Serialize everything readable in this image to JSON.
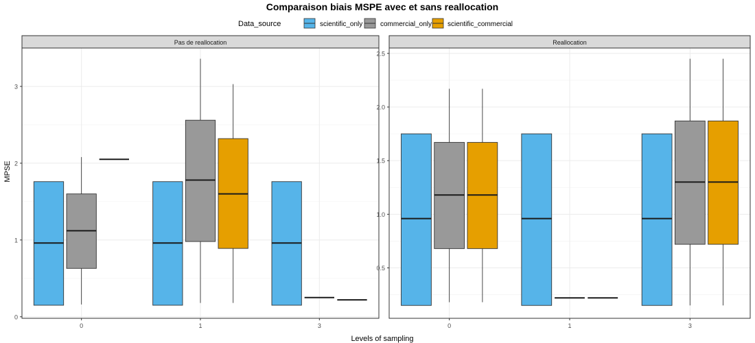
{
  "chart_data": {
    "type": "boxplot",
    "title": "Comparaison biais MSPE avec et sans reallocation",
    "xlabel": "Levels of sampling",
    "ylabel": "MPSE",
    "legend": {
      "title": "Data_source",
      "position": "top",
      "entries": [
        {
          "name": "scientific_only",
          "color": "#56B4E9"
        },
        {
          "name": "commercial_only",
          "color": "#999999"
        },
        {
          "name": "scientific_commercial",
          "color": "#E69F00"
        }
      ]
    },
    "categories": [
      "0",
      "1",
      "3"
    ],
    "grid": true,
    "panels": [
      {
        "strip": "Pas de reallocation",
        "ylim": [
          -0.02,
          3.5
        ],
        "yticks": [
          0,
          1,
          2,
          3
        ],
        "yticklabels": [
          "0",
          "1",
          "2",
          "3"
        ],
        "boxes": [
          {
            "category": "0",
            "series": "scientific_only",
            "min": 0.15,
            "q1": 0.15,
            "median": 0.96,
            "q3": 1.76,
            "max": 1.76
          },
          {
            "category": "0",
            "series": "commercial_only",
            "min": 0.16,
            "q1": 0.63,
            "median": 1.12,
            "q3": 1.6,
            "max": 2.08
          },
          {
            "category": "0",
            "series": "scientific_commercial",
            "min": 2.05,
            "q1": 2.05,
            "median": 2.05,
            "q3": 2.05,
            "max": 2.05
          },
          {
            "category": "1",
            "series": "scientific_only",
            "min": 0.15,
            "q1": 0.15,
            "median": 0.96,
            "q3": 1.76,
            "max": 1.76
          },
          {
            "category": "1",
            "series": "commercial_only",
            "min": 0.18,
            "q1": 0.98,
            "median": 1.78,
            "q3": 2.56,
            "max": 3.36
          },
          {
            "category": "1",
            "series": "scientific_commercial",
            "min": 0.18,
            "q1": 0.89,
            "median": 1.6,
            "q3": 2.32,
            "max": 3.03
          },
          {
            "category": "3",
            "series": "scientific_only",
            "min": 0.15,
            "q1": 0.15,
            "median": 0.96,
            "q3": 1.76,
            "max": 1.76
          },
          {
            "category": "3",
            "series": "commercial_only",
            "min": 0.25,
            "q1": 0.25,
            "median": 0.25,
            "q3": 0.25,
            "max": 0.25
          },
          {
            "category": "3",
            "series": "scientific_commercial",
            "min": 0.22,
            "q1": 0.22,
            "median": 0.22,
            "q3": 0.22,
            "max": 0.22
          }
        ]
      },
      {
        "strip": "Reallocation",
        "ylim": [
          0.03,
          2.55
        ],
        "yticks": [
          0.5,
          1.0,
          1.5,
          2.0,
          2.5
        ],
        "yticklabels": [
          "0.5",
          "1.0",
          "1.5",
          "2.0",
          "2.5"
        ],
        "boxes": [
          {
            "category": "0",
            "series": "scientific_only",
            "min": 0.15,
            "q1": 0.15,
            "median": 0.96,
            "q3": 1.75,
            "max": 1.75
          },
          {
            "category": "0",
            "series": "commercial_only",
            "min": 0.18,
            "q1": 0.68,
            "median": 1.18,
            "q3": 1.67,
            "max": 2.17
          },
          {
            "category": "0",
            "series": "scientific_commercial",
            "min": 0.18,
            "q1": 0.68,
            "median": 1.18,
            "q3": 1.67,
            "max": 2.17
          },
          {
            "category": "1",
            "series": "scientific_only",
            "min": 0.15,
            "q1": 0.15,
            "median": 0.96,
            "q3": 1.75,
            "max": 1.75
          },
          {
            "category": "1",
            "series": "commercial_only",
            "min": 0.22,
            "q1": 0.22,
            "median": 0.22,
            "q3": 0.22,
            "max": 0.22
          },
          {
            "category": "1",
            "series": "scientific_commercial",
            "min": 0.22,
            "q1": 0.22,
            "median": 0.22,
            "q3": 0.22,
            "max": 0.22
          },
          {
            "category": "3",
            "series": "scientific_only",
            "min": 0.15,
            "q1": 0.15,
            "median": 0.96,
            "q3": 1.75,
            "max": 1.75
          },
          {
            "category": "3",
            "series": "commercial_only",
            "min": 0.15,
            "q1": 0.72,
            "median": 1.3,
            "q3": 1.87,
            "max": 2.45
          },
          {
            "category": "3",
            "series": "scientific_commercial",
            "min": 0.15,
            "q1": 0.72,
            "median": 1.3,
            "q3": 1.87,
            "max": 2.45
          }
        ]
      }
    ]
  }
}
